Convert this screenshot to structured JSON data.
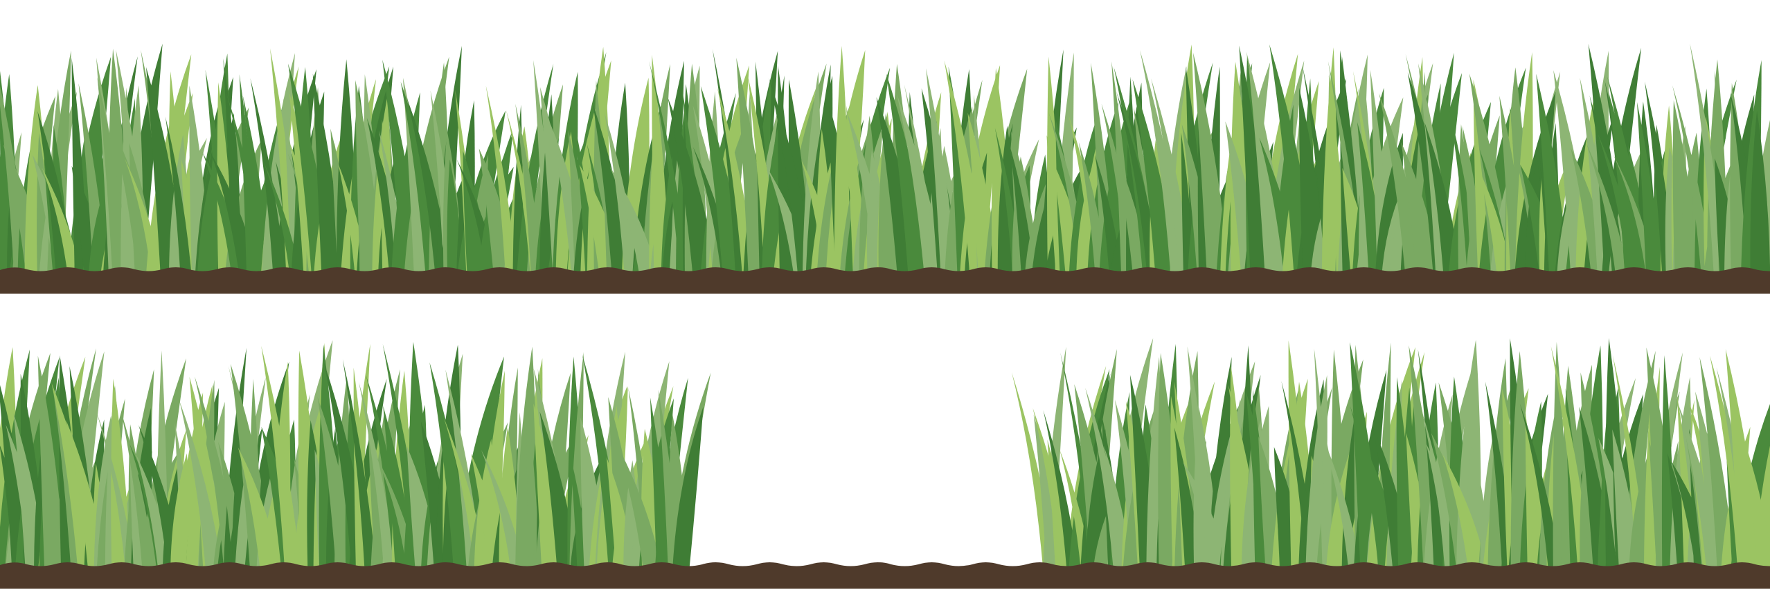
{
  "illustration": {
    "subject": "grass-border",
    "palette": {
      "background": "#ffffff",
      "soil": "#4f3a2b",
      "blade_light": "#9bc462",
      "blade_mid": "#7aa962",
      "blade_sage": "#8db574",
      "blade_dark": "#4a8a3c",
      "blade_deep": "#3f7d35"
    },
    "strips": [
      {
        "name": "top-strip",
        "grass": "full-width"
      },
      {
        "name": "bottom-strip",
        "grass": "left-and-right",
        "bare_soil": "middle"
      }
    ]
  }
}
